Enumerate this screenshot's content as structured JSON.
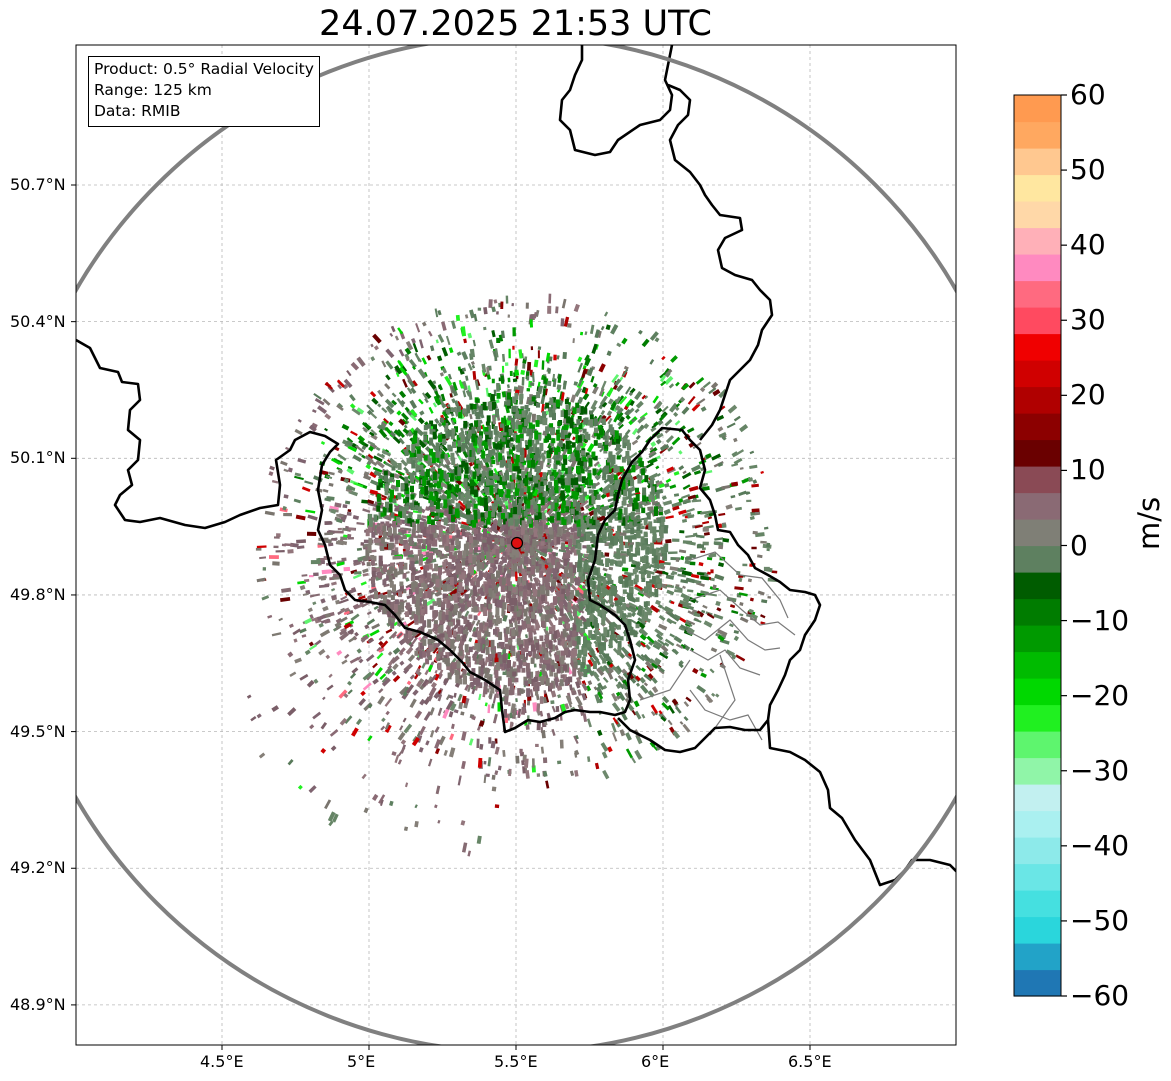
{
  "title": "24.07.2025 21:53 UTC",
  "info_box": {
    "product": "Product: 0.5° Radial Velocity",
    "range": "Range: 125 km",
    "data": "Data: RMIB"
  },
  "map": {
    "lon_range": [
      4.0,
      7.0
    ],
    "lat_range": [
      48.8,
      51.0
    ],
    "lon_ticks": [
      "4.5°E",
      "5°E",
      "5.5°E",
      "6°E",
      "6.5°E"
    ],
    "lon_tick_values": [
      4.5,
      5.0,
      5.5,
      6.0,
      6.5
    ],
    "lat_ticks": [
      "50.7°N",
      "50.4°N",
      "50.1°N",
      "49.8°N",
      "49.5°N",
      "49.2°N",
      "48.9°N"
    ],
    "lat_tick_values": [
      50.7,
      50.4,
      50.1,
      49.8,
      49.5,
      49.2,
      48.9
    ],
    "gridlines": true,
    "radar_site": {
      "lon": 5.5,
      "lat": 49.91,
      "marker": "red-circle"
    },
    "range_ring_km": 125,
    "colors": {
      "range_ring": "#808080",
      "border": "#000000",
      "site": "#e01010"
    }
  },
  "colorbar": {
    "label": "m/s",
    "min": -60,
    "max": 60,
    "tick_labels": [
      "60",
      "50",
      "40",
      "30",
      "20",
      "10",
      "0",
      "−10",
      "−20",
      "−30",
      "−40",
      "−50",
      "−60"
    ],
    "tick_values": [
      60,
      50,
      40,
      30,
      20,
      10,
      0,
      -10,
      -20,
      -30,
      -40,
      -50,
      -60
    ],
    "colors_low_to_high": [
      "#1f77b4",
      "#22a3c8",
      "#2ad6dc",
      "#45e0e0",
      "#6ae6e6",
      "#8deaea",
      "#aaf0f0",
      "#c2f0f0",
      "#90f5a8",
      "#5ef56e",
      "#20f020",
      "#00d800",
      "#00bb00",
      "#009a00",
      "#007c00",
      "#005c00",
      "#5e8060",
      "#7f7f76",
      "#8a6a74",
      "#8a4a55",
      "#6a0000",
      "#8c0000",
      "#b00000",
      "#d00000",
      "#f00000",
      "#ff4a60",
      "#ff6a80",
      "#ff8ac0",
      "#ffb0b8",
      "#ffd8a8",
      "#ffe7a0",
      "#ffc890",
      "#ffa860",
      "#ff9a50"
    ]
  }
}
